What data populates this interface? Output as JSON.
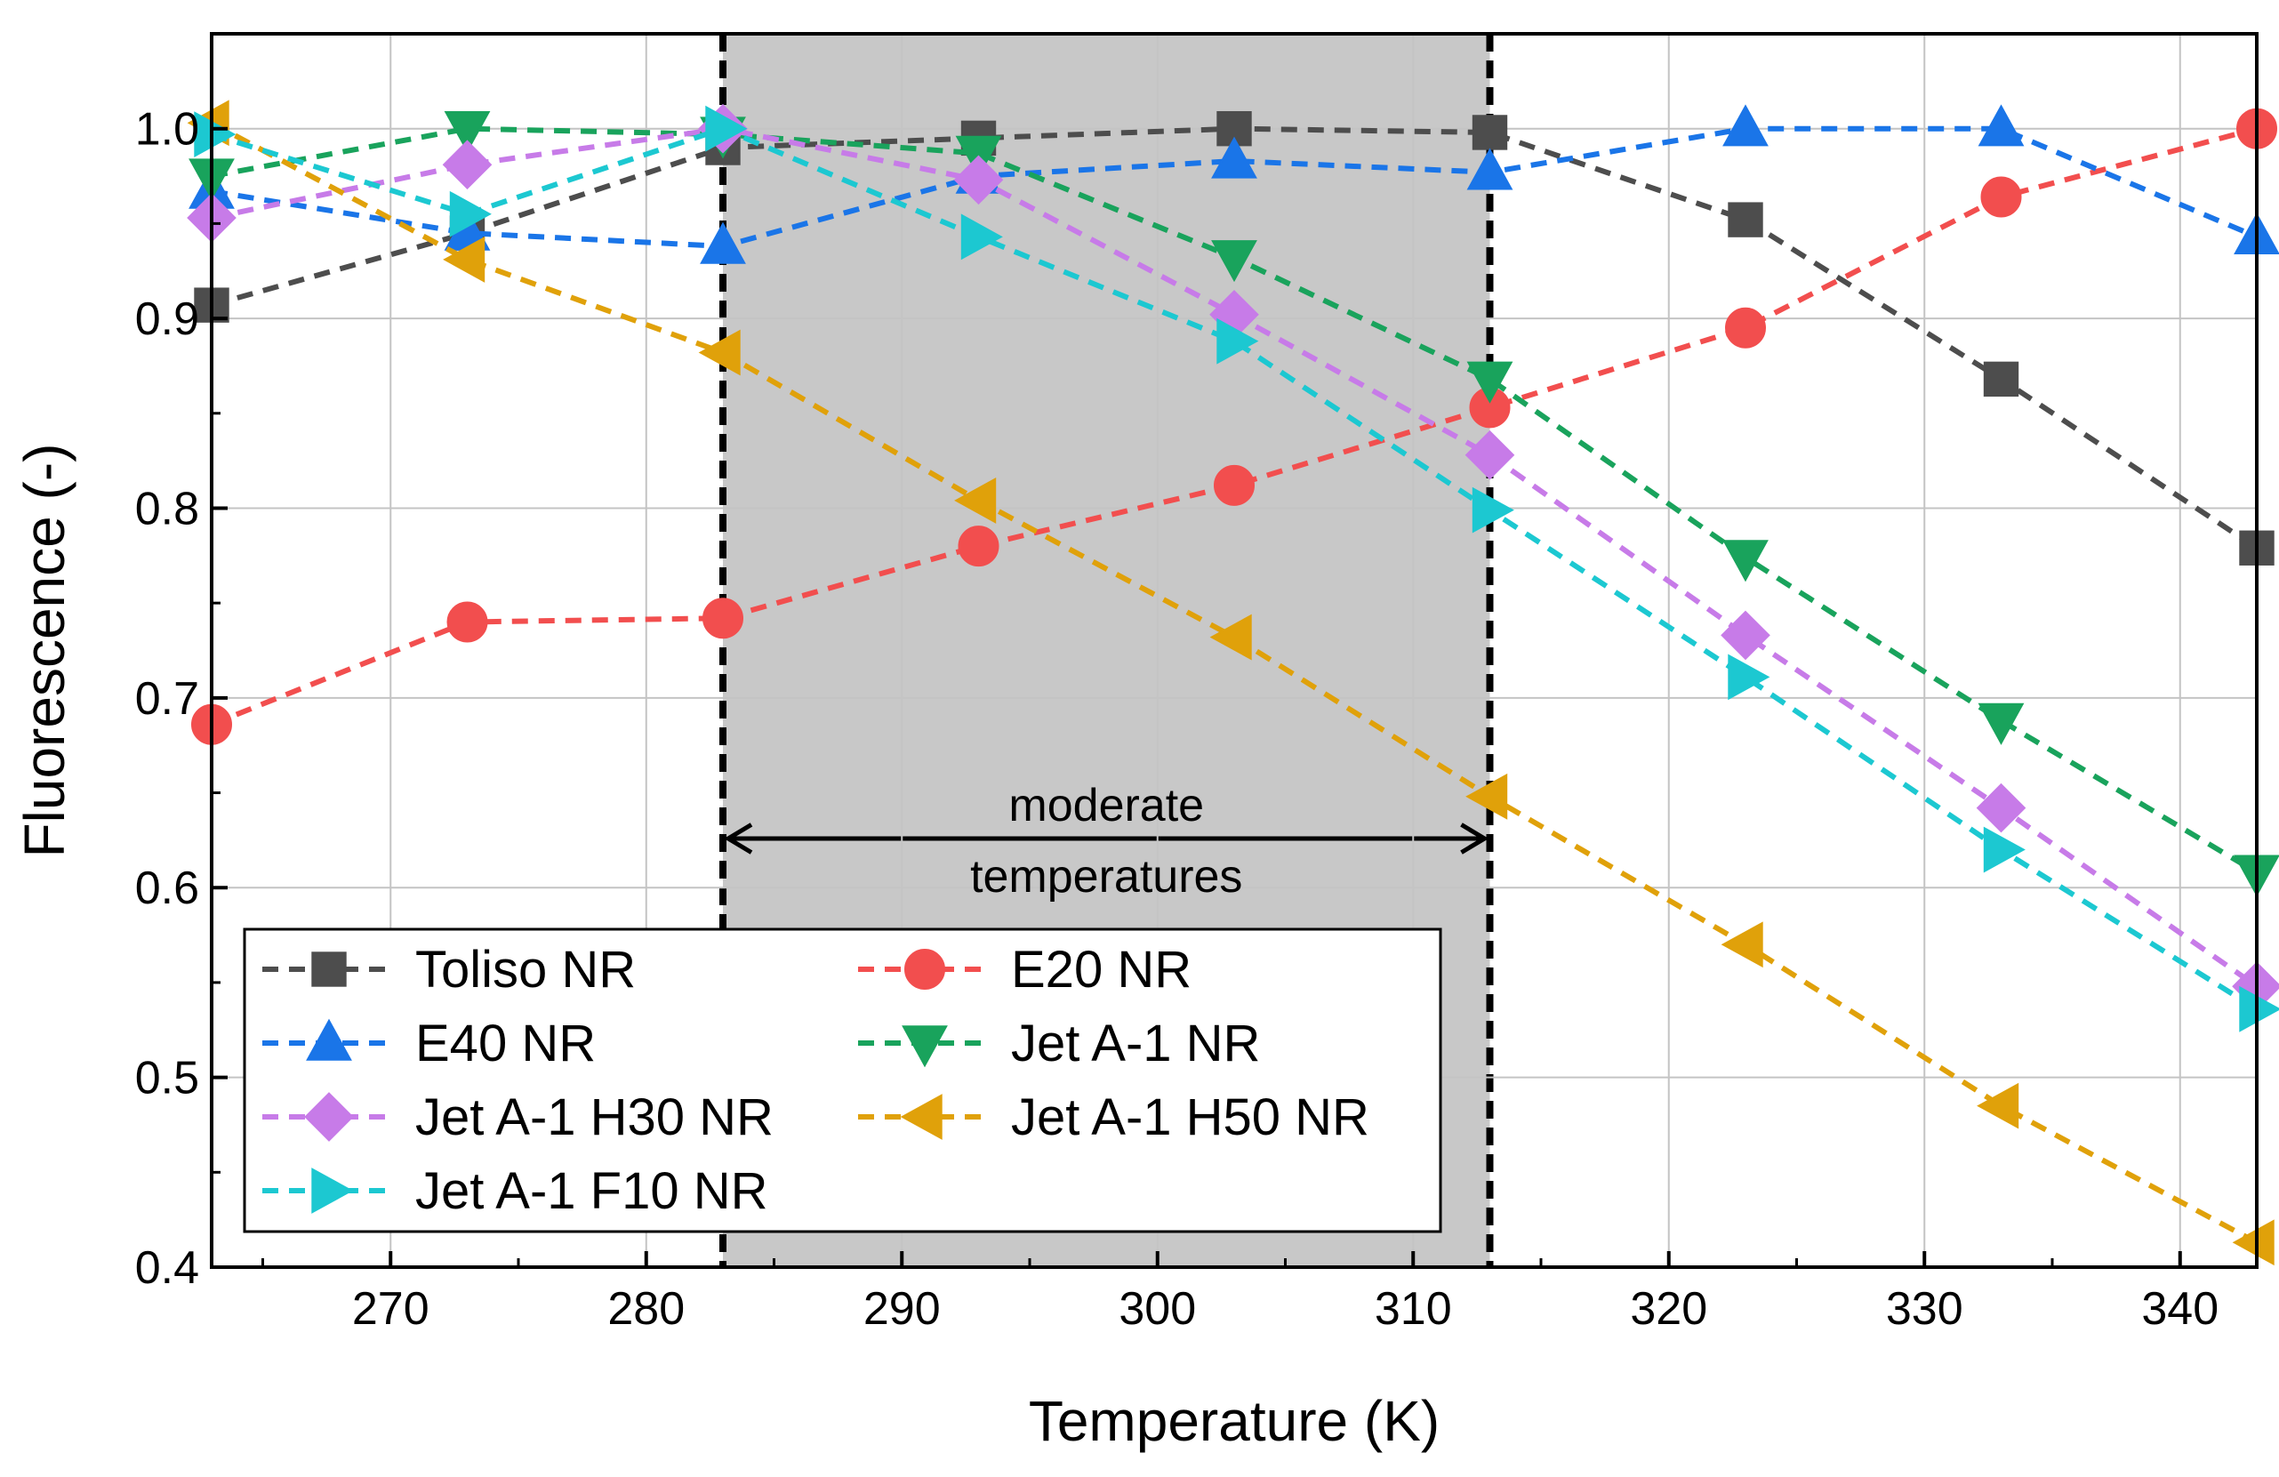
{
  "chart_data": {
    "type": "line",
    "xlabel": "Temperature (K)",
    "ylabel": "Fluorescence (-)",
    "xlim": [
      263,
      343
    ],
    "ylim": [
      0.4,
      1.05
    ],
    "xticks": [
      270,
      280,
      290,
      300,
      310,
      320,
      330,
      340
    ],
    "yticks": [
      0.4,
      0.5,
      0.6,
      0.7,
      0.8,
      0.9,
      1.0
    ],
    "xtick_labels": [
      "270",
      "280",
      "290",
      "300",
      "310",
      "320",
      "330",
      "340"
    ],
    "ytick_labels": [
      "0.4",
      "0.5",
      "0.6",
      "0.7",
      "0.8",
      "0.9",
      "1.0"
    ],
    "grid": true,
    "x": [
      263,
      273,
      283,
      293,
      303,
      313,
      323,
      333,
      343
    ],
    "shaded_region": {
      "x_range": [
        283,
        313
      ],
      "color": "#c8c8c8",
      "label_line1": "moderate",
      "label_line2": "temperatures"
    },
    "series": [
      {
        "name": "Toliso NR",
        "color": "#4d4d4d",
        "marker": "square",
        "values": [
          0.907,
          0.945,
          0.99,
          0.995,
          1.0,
          0.998,
          0.952,
          0.868,
          0.779
        ]
      },
      {
        "name": "E20 NR",
        "color": "#f24e4e",
        "marker": "circle",
        "values": [
          0.686,
          0.74,
          0.742,
          0.78,
          0.812,
          0.853,
          0.895,
          0.964,
          1.0
        ]
      },
      {
        "name": "E40 NR",
        "color": "#1a75e8",
        "marker": "triangle-up",
        "values": [
          0.967,
          0.945,
          0.938,
          0.975,
          0.983,
          0.977,
          1.0,
          1.0,
          0.943
        ]
      },
      {
        "name": "Jet A-1 NR",
        "color": "#19a35c",
        "marker": "triangle-down",
        "values": [
          0.975,
          1.0,
          0.997,
          0.987,
          0.932,
          0.868,
          0.774,
          0.688,
          0.608
        ]
      },
      {
        "name": "Jet A-1 H30 NR",
        "color": "#c77be8",
        "marker": "diamond",
        "values": [
          0.953,
          0.981,
          1.0,
          0.973,
          0.902,
          0.828,
          0.733,
          0.642,
          0.548
        ]
      },
      {
        "name": "Jet A-1 H50 NR",
        "color": "#e0a10a",
        "marker": "triangle-left",
        "values": [
          1.003,
          0.931,
          0.882,
          0.804,
          0.732,
          0.648,
          0.57,
          0.485,
          0.413
        ]
      },
      {
        "name": "Jet A-1 F10 NR",
        "color": "#1cc8d1",
        "marker": "triangle-right",
        "values": [
          0.997,
          0.955,
          1.0,
          0.943,
          0.888,
          0.799,
          0.711,
          0.62,
          0.536
        ]
      }
    ],
    "legend": {
      "location": "lower-left",
      "columns": 2,
      "order": [
        "Toliso NR",
        "E20 NR",
        "E40 NR",
        "Jet A-1 NR",
        "Jet A-1 H30 NR",
        "Jet A-1 H50 NR",
        "Jet A-1 F10 NR"
      ]
    }
  }
}
